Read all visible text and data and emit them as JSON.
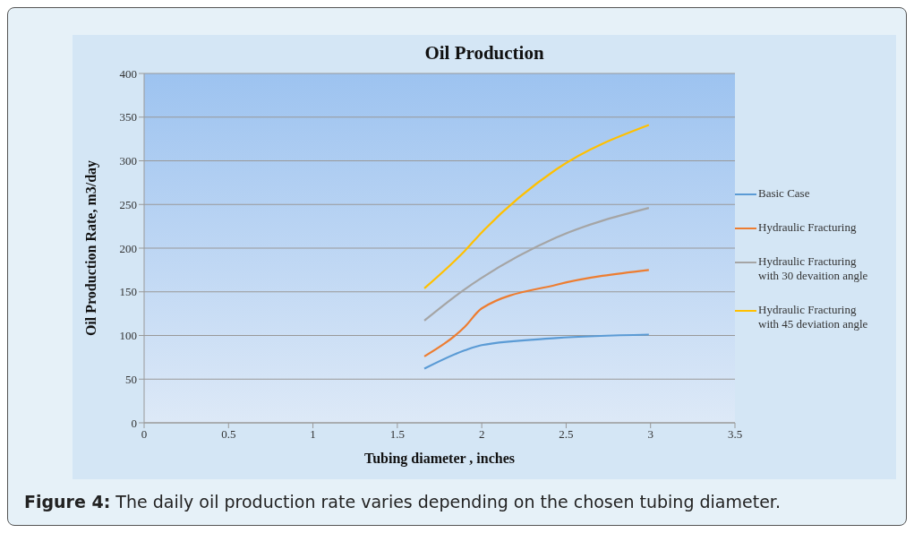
{
  "chart_data": {
    "type": "line",
    "title": "Oil Production",
    "xlabel": "Tubing diameter , inches",
    "ylabel": "Oil Production Rate, m3/day",
    "x": [
      1.66,
      1.9,
      2.0,
      2.44,
      2.99
    ],
    "series": [
      {
        "name": "Basic Case",
        "color": "#5b9bd5",
        "values": [
          62,
          83,
          89,
          97,
          101
        ]
      },
      {
        "name": "Hydraulic Fracturing",
        "color": "#ed7d31",
        "values": [
          76,
          110,
          131,
          158,
          175
        ]
      },
      {
        "name": "Hydraulic Fracturing with 30 devaition angle",
        "color": "#a5a5a5",
        "values": [
          117,
          153,
          166,
          212,
          246
        ]
      },
      {
        "name": "Hydraulic Fracturing with 45 deviation angle",
        "color": "#ffc000",
        "values": [
          154,
          197,
          218,
          290,
          341
        ]
      }
    ],
    "xlim": [
      0,
      3.5
    ],
    "xticks": [
      0,
      0.5,
      1,
      1.5,
      2,
      2.5,
      3,
      3.5
    ],
    "ylim": [
      0,
      400
    ],
    "yticks": [
      0,
      50,
      100,
      150,
      200,
      250,
      300,
      350,
      400
    ],
    "grid": "y",
    "legend": "right",
    "marker": "none",
    "line_style": "solid",
    "annotations": [
      "Figure 4: The daily oil production rate varies depending on the chosen tubing diameter."
    ]
  }
}
